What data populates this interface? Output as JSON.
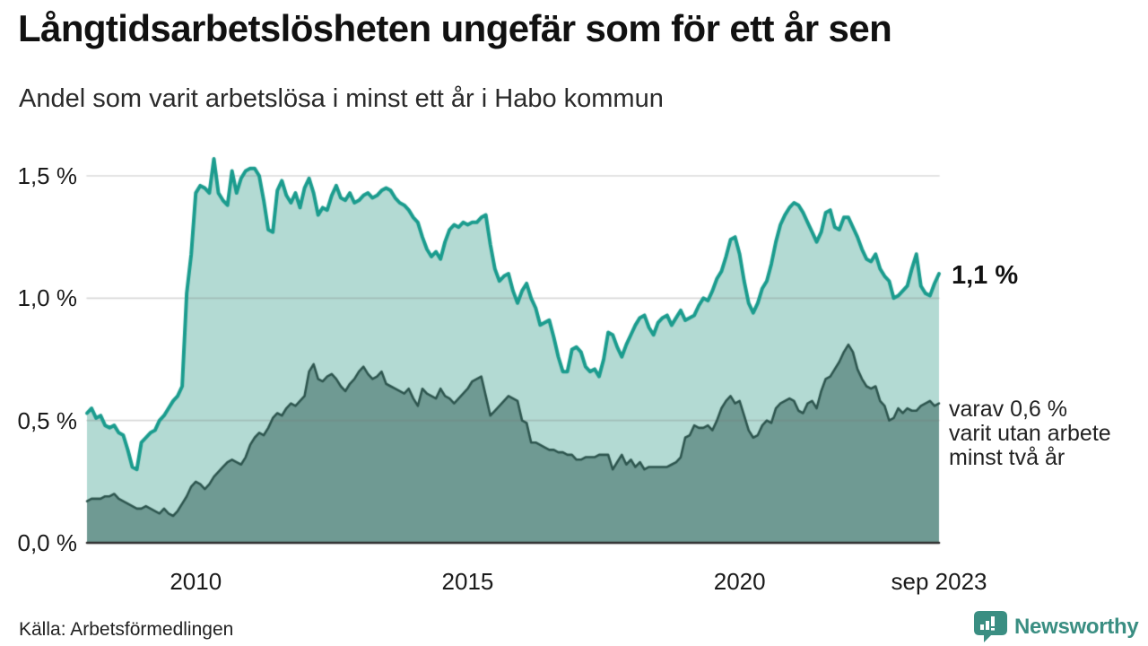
{
  "header": {
    "title": "Långtidsarbetslösheten ungefär som för ett år sen",
    "subtitle": "Andel som varit arbetslösa i minst ett år i Habo kommun"
  },
  "annotations": {
    "latest": "1,1 %",
    "secondary_lines": [
      "varav 0,6 %",
      "varit utan arbete",
      "minst två år"
    ]
  },
  "footer": {
    "source": "Källa: Arbetsförmedlingen",
    "brand": "Newsworthy"
  },
  "theme": {
    "teal_line": "#1b9c8e",
    "teal_fill": "#b3dad3",
    "dark_line": "#2e564f",
    "dark_fill": "#6f9a93",
    "gridline": "rgba(120,120,120,0.28)",
    "baseline": "#2e2e2e",
    "text": "#1a1a1a",
    "brand_teal": "#3a8e82"
  },
  "chart_data": {
    "type": "area",
    "title": "Långtidsarbetslösheten ungefär som för ett år sen",
    "subtitle": "Andel som varit arbetslösa i minst ett år i Habo kommun",
    "unit": "%",
    "grid": "horizontal",
    "legend": "none",
    "x": {
      "start": "jan 2008",
      "end": "sep 2023",
      "frequency": "monthly"
    },
    "ylim": [
      0,
      1.65
    ],
    "y_ticks": [
      {
        "label": "0,0 %",
        "value": 0
      },
      {
        "label": "0,5 %",
        "value": 0.5
      },
      {
        "label": "1,0 %",
        "value": 1.0
      },
      {
        "label": "1,5 %",
        "value": 1.5
      }
    ],
    "x_ticks": [
      {
        "label": "2010",
        "month_index": 24
      },
      {
        "label": "2015",
        "month_index": 84
      },
      {
        "label": "2020",
        "month_index": 144
      },
      {
        "label": "sep 2023",
        "month_index": 188
      }
    ],
    "series": [
      {
        "name": "Arbetslösa minst ett år",
        "final_value_label": "1,1 %",
        "color": "#1b9c8e",
        "fill": "#b3dad3",
        "line_width": 4,
        "values": [
          0.53,
          0.55,
          0.51,
          0.52,
          0.48,
          0.47,
          0.48,
          0.45,
          0.44,
          0.38,
          0.31,
          0.3,
          0.41,
          0.43,
          0.45,
          0.46,
          0.5,
          0.52,
          0.55,
          0.58,
          0.6,
          0.64,
          1.02,
          1.18,
          1.43,
          1.46,
          1.45,
          1.43,
          1.57,
          1.43,
          1.4,
          1.38,
          1.52,
          1.43,
          1.49,
          1.52,
          1.53,
          1.53,
          1.5,
          1.4,
          1.28,
          1.27,
          1.44,
          1.48,
          1.42,
          1.39,
          1.43,
          1.37,
          1.45,
          1.49,
          1.43,
          1.34,
          1.37,
          1.36,
          1.42,
          1.46,
          1.41,
          1.4,
          1.43,
          1.39,
          1.4,
          1.42,
          1.43,
          1.41,
          1.42,
          1.44,
          1.45,
          1.44,
          1.41,
          1.39,
          1.38,
          1.36,
          1.33,
          1.31,
          1.25,
          1.2,
          1.17,
          1.19,
          1.16,
          1.23,
          1.28,
          1.3,
          1.29,
          1.31,
          1.3,
          1.31,
          1.31,
          1.33,
          1.34,
          1.22,
          1.12,
          1.07,
          1.09,
          1.1,
          1.03,
          0.98,
          1.03,
          1.06,
          1.0,
          0.96,
          0.89,
          0.9,
          0.91,
          0.84,
          0.76,
          0.7,
          0.7,
          0.79,
          0.8,
          0.78,
          0.72,
          0.7,
          0.71,
          0.68,
          0.75,
          0.86,
          0.85,
          0.8,
          0.76,
          0.81,
          0.85,
          0.89,
          0.92,
          0.93,
          0.88,
          0.85,
          0.9,
          0.92,
          0.93,
          0.89,
          0.92,
          0.95,
          0.91,
          0.92,
          0.93,
          0.97,
          1.0,
          0.99,
          1.03,
          1.08,
          1.11,
          1.17,
          1.24,
          1.25,
          1.18,
          1.07,
          0.98,
          0.94,
          0.98,
          1.04,
          1.07,
          1.14,
          1.23,
          1.3,
          1.34,
          1.37,
          1.39,
          1.38,
          1.35,
          1.31,
          1.27,
          1.23,
          1.27,
          1.35,
          1.36,
          1.29,
          1.28,
          1.33,
          1.33,
          1.29,
          1.25,
          1.2,
          1.16,
          1.15,
          1.18,
          1.12,
          1.09,
          1.07,
          1.0,
          1.01,
          1.03,
          1.05,
          1.12,
          1.18,
          1.05,
          1.02,
          1.01,
          1.06,
          1.1
        ]
      },
      {
        "name": "Varav utan arbete minst två år",
        "final_value_label": "varav 0,6 % varit utan arbete minst två år",
        "color": "#2e564f",
        "fill": "#6f9a93",
        "line_width": 2.6,
        "values": [
          0.17,
          0.18,
          0.18,
          0.18,
          0.19,
          0.19,
          0.2,
          0.18,
          0.17,
          0.16,
          0.15,
          0.14,
          0.14,
          0.15,
          0.14,
          0.13,
          0.12,
          0.14,
          0.12,
          0.11,
          0.13,
          0.16,
          0.19,
          0.23,
          0.25,
          0.24,
          0.22,
          0.24,
          0.27,
          0.29,
          0.31,
          0.33,
          0.34,
          0.33,
          0.32,
          0.35,
          0.4,
          0.43,
          0.45,
          0.44,
          0.47,
          0.51,
          0.53,
          0.52,
          0.55,
          0.57,
          0.56,
          0.58,
          0.6,
          0.7,
          0.73,
          0.67,
          0.66,
          0.68,
          0.69,
          0.67,
          0.64,
          0.62,
          0.65,
          0.67,
          0.7,
          0.72,
          0.69,
          0.67,
          0.68,
          0.7,
          0.65,
          0.64,
          0.63,
          0.62,
          0.61,
          0.63,
          0.59,
          0.56,
          0.63,
          0.61,
          0.6,
          0.59,
          0.63,
          0.6,
          0.59,
          0.57,
          0.59,
          0.61,
          0.63,
          0.66,
          0.67,
          0.68,
          0.6,
          0.52,
          0.54,
          0.56,
          0.58,
          0.6,
          0.59,
          0.58,
          0.5,
          0.49,
          0.41,
          0.41,
          0.4,
          0.39,
          0.38,
          0.38,
          0.37,
          0.37,
          0.36,
          0.36,
          0.34,
          0.34,
          0.35,
          0.35,
          0.35,
          0.36,
          0.36,
          0.36,
          0.3,
          0.33,
          0.36,
          0.32,
          0.34,
          0.31,
          0.33,
          0.3,
          0.31,
          0.31,
          0.31,
          0.31,
          0.31,
          0.32,
          0.33,
          0.35,
          0.43,
          0.44,
          0.48,
          0.47,
          0.47,
          0.48,
          0.46,
          0.5,
          0.55,
          0.58,
          0.6,
          0.57,
          0.58,
          0.52,
          0.46,
          0.43,
          0.44,
          0.48,
          0.5,
          0.49,
          0.55,
          0.57,
          0.58,
          0.59,
          0.58,
          0.54,
          0.53,
          0.57,
          0.58,
          0.55,
          0.62,
          0.67,
          0.68,
          0.71,
          0.74,
          0.78,
          0.81,
          0.78,
          0.71,
          0.67,
          0.64,
          0.63,
          0.64,
          0.58,
          0.56,
          0.5,
          0.51,
          0.55,
          0.53,
          0.55,
          0.54,
          0.54,
          0.56,
          0.57,
          0.58,
          0.56,
          0.57
        ]
      }
    ]
  }
}
